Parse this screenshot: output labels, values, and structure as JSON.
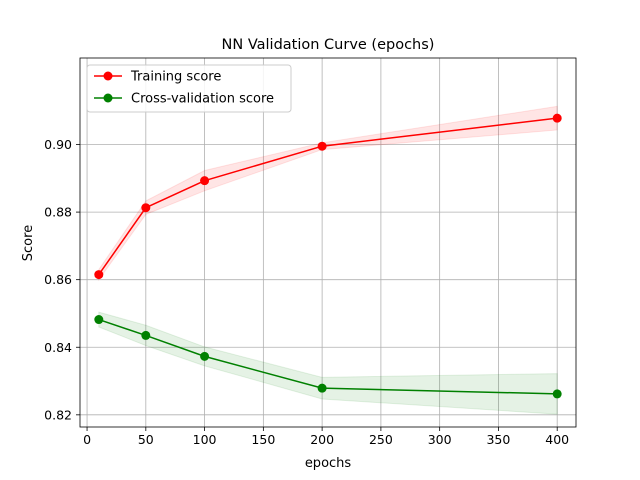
{
  "chart_data": {
    "type": "line",
    "title": "NN Validation Curve (epochs)",
    "xlabel": "epochs",
    "ylabel": "Score",
    "xlim": [
      -6,
      416
    ],
    "ylim": [
      0.8164,
      0.9256
    ],
    "xticks": [
      0,
      50,
      100,
      150,
      200,
      250,
      300,
      350,
      400
    ],
    "yticks": [
      0.82,
      0.84,
      0.86,
      0.88,
      0.9
    ],
    "ytick_labels": [
      "0.82",
      "0.84",
      "0.86",
      "0.88",
      "0.90"
    ],
    "grid": true,
    "legend_position": "upper-left",
    "x": [
      10,
      50,
      100,
      200,
      400
    ],
    "series": [
      {
        "name": "Training score",
        "color": "#ff0000",
        "values": [
          0.8615,
          0.8813,
          0.8893,
          0.8995,
          0.9078
        ],
        "band_low": [
          0.86,
          0.8793,
          0.8863,
          0.8985,
          0.9043
        ],
        "band_high": [
          0.863,
          0.8833,
          0.8923,
          0.9005,
          0.9113
        ]
      },
      {
        "name": "Cross-validation score",
        "color": "#008000",
        "values": [
          0.8482,
          0.8435,
          0.8373,
          0.8279,
          0.8262
        ],
        "band_low": [
          0.846,
          0.8405,
          0.8345,
          0.8247,
          0.8202
        ],
        "band_high": [
          0.8504,
          0.8465,
          0.8401,
          0.8311,
          0.8322
        ]
      }
    ]
  }
}
